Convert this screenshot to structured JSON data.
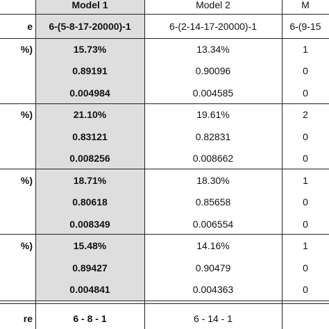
{
  "table": {
    "rows": [
      [
        null,
        "Model 1",
        "Model 2",
        "M"
      ],
      [
        "e",
        "6-(5-8-17-20000)-1",
        "6-(2-14-17-20000)-1",
        "6-(9-15"
      ],
      [
        "%)",
        "15.73%",
        "13.34%",
        "1"
      ],
      [
        null,
        "0.89191",
        "0.90096",
        "0"
      ],
      [
        null,
        "0.004984",
        "0.004585",
        "0"
      ],
      [
        "%)",
        "21.10%",
        "19.61%",
        "2"
      ],
      [
        null,
        "0.83121",
        "0.82831",
        "0"
      ],
      [
        null,
        "0.008256",
        "0.008662",
        "0"
      ],
      [
        "%)",
        "18.71%",
        "18.30%",
        "1"
      ],
      [
        null,
        "0.80618",
        "0.85658",
        "0"
      ],
      [
        null,
        "0.008349",
        "0.006554",
        "0"
      ],
      [
        "%)",
        "15.48%",
        "14.16%",
        "1"
      ],
      [
        null,
        "0.89427",
        "0.90479",
        "0"
      ],
      [
        null,
        "0.004841",
        "0.004363",
        "0"
      ],
      [
        "re",
        "6 - 8 - 1",
        "6 - 14 - 1",
        null
      ]
    ]
  }
}
